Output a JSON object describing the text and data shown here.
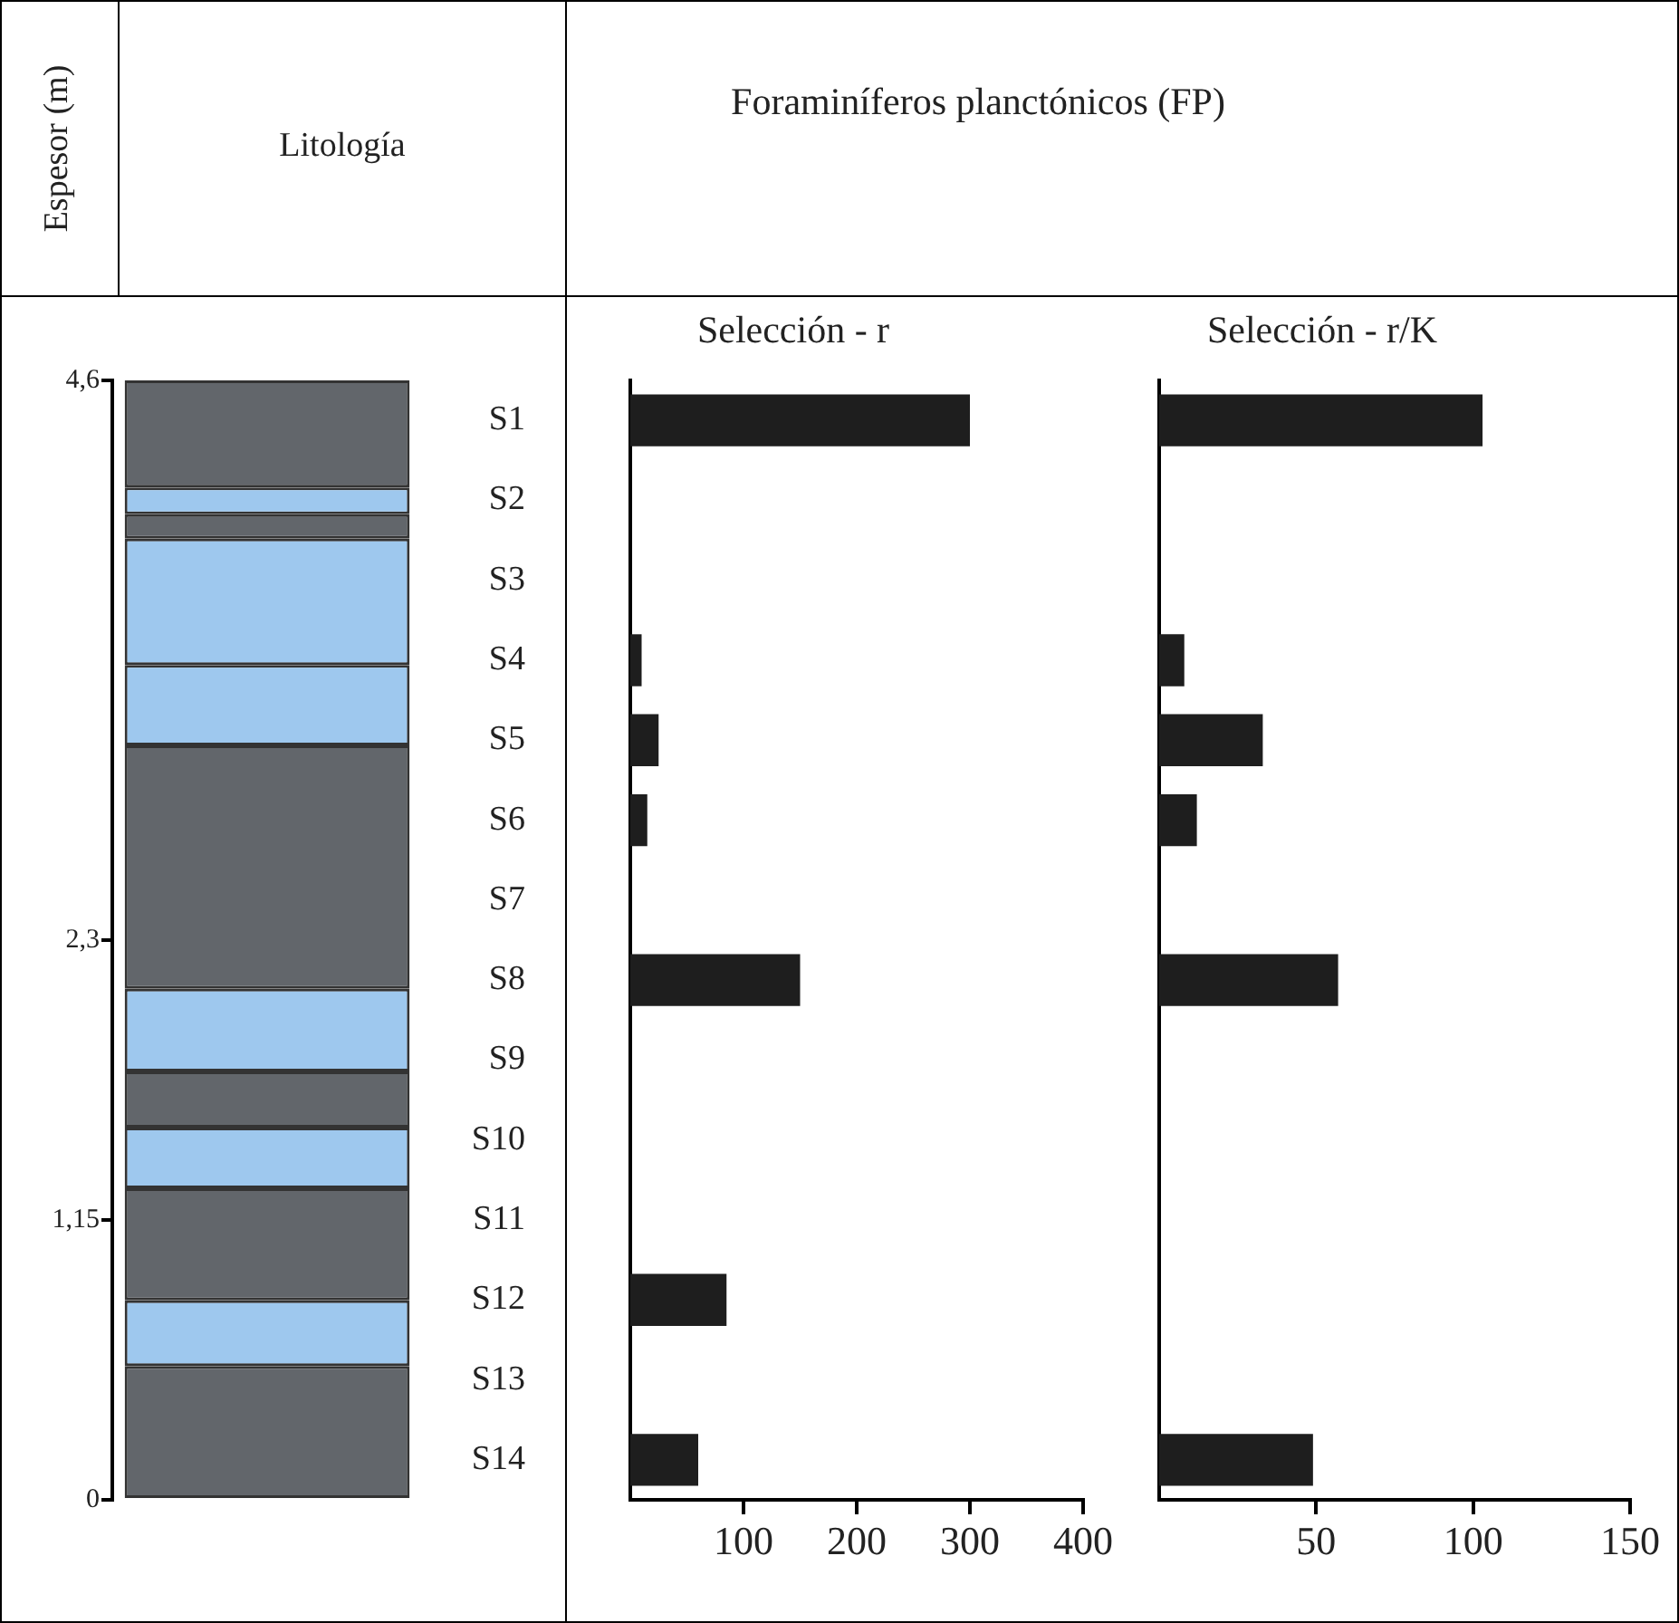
{
  "chart_data": [
    {
      "type": "bar",
      "stacked": true,
      "title": "Litología",
      "ylabel": "Espesor (m)",
      "ylim": [
        0,
        4.6
      ],
      "yticks": [
        {
          "value": 4.6,
          "label": "4,6"
        },
        {
          "value": 2.3,
          "label": "2,3"
        },
        {
          "value": 1.15,
          "label": "1,15"
        },
        0
      ],
      "categories": [
        null
      ],
      "tick_labels": "y",
      "grid": false,
      "series": [
        {
          "color": "#62666b",
          "values": [
            0.55
          ]
        },
        {
          "color": "#9ec8ee",
          "values": [
            0.27
          ]
        },
        {
          "color": "#62666b",
          "values": [
            0.46
          ]
        },
        {
          "color": "#9ec8ee",
          "values": [
            0.25
          ]
        },
        {
          "color": "#62666b",
          "values": [
            0.23
          ]
        },
        {
          "color": "#9ec8ee",
          "values": [
            0.34
          ]
        },
        {
          "color": "#62666b",
          "values": [
            1.0
          ]
        },
        {
          "color": "#9ec8ee",
          "values": [
            0.33
          ]
        },
        {
          "color": "#9ec8ee",
          "values": [
            0.52
          ]
        },
        {
          "color": "#62666b",
          "values": [
            0.1
          ]
        },
        {
          "color": "#9ec8ee",
          "values": [
            0.11
          ]
        },
        {
          "color": "#62666b",
          "values": [
            0.44
          ]
        }
      ]
    },
    {
      "type": "bar",
      "orientation": "horizontal",
      "title": "Selección - r",
      "annotations": [
        "Foraminíferos planctónicos (FP)"
      ],
      "categories": [
        "S1",
        "S2",
        "S3",
        "S4",
        "S5",
        "S6",
        "S7",
        "S8",
        "S9",
        "S10",
        "S11",
        "S12",
        "S13",
        "S14"
      ],
      "values": [
        300,
        0,
        0,
        10,
        25,
        15,
        0,
        150,
        0,
        0,
        0,
        85,
        0,
        60
      ],
      "color": "#1e1e1e",
      "xlim": [
        0,
        400
      ],
      "xticks": [
        100,
        200,
        300,
        400
      ],
      "grid": false
    },
    {
      "type": "bar",
      "orientation": "horizontal",
      "title": "Selección - r/K",
      "categories": [
        null,
        null,
        null,
        null,
        null,
        null,
        null,
        null,
        null,
        null,
        null,
        null,
        null,
        null
      ],
      "values": [
        103,
        0,
        0,
        8,
        33,
        12,
        0,
        57,
        0,
        0,
        0,
        0,
        0,
        49
      ],
      "color": "#1e1e1e",
      "xlim": [
        0,
        150
      ],
      "xticks": [
        50,
        100,
        150
      ],
      "grid": false,
      "tick_labels": "x"
    }
  ]
}
